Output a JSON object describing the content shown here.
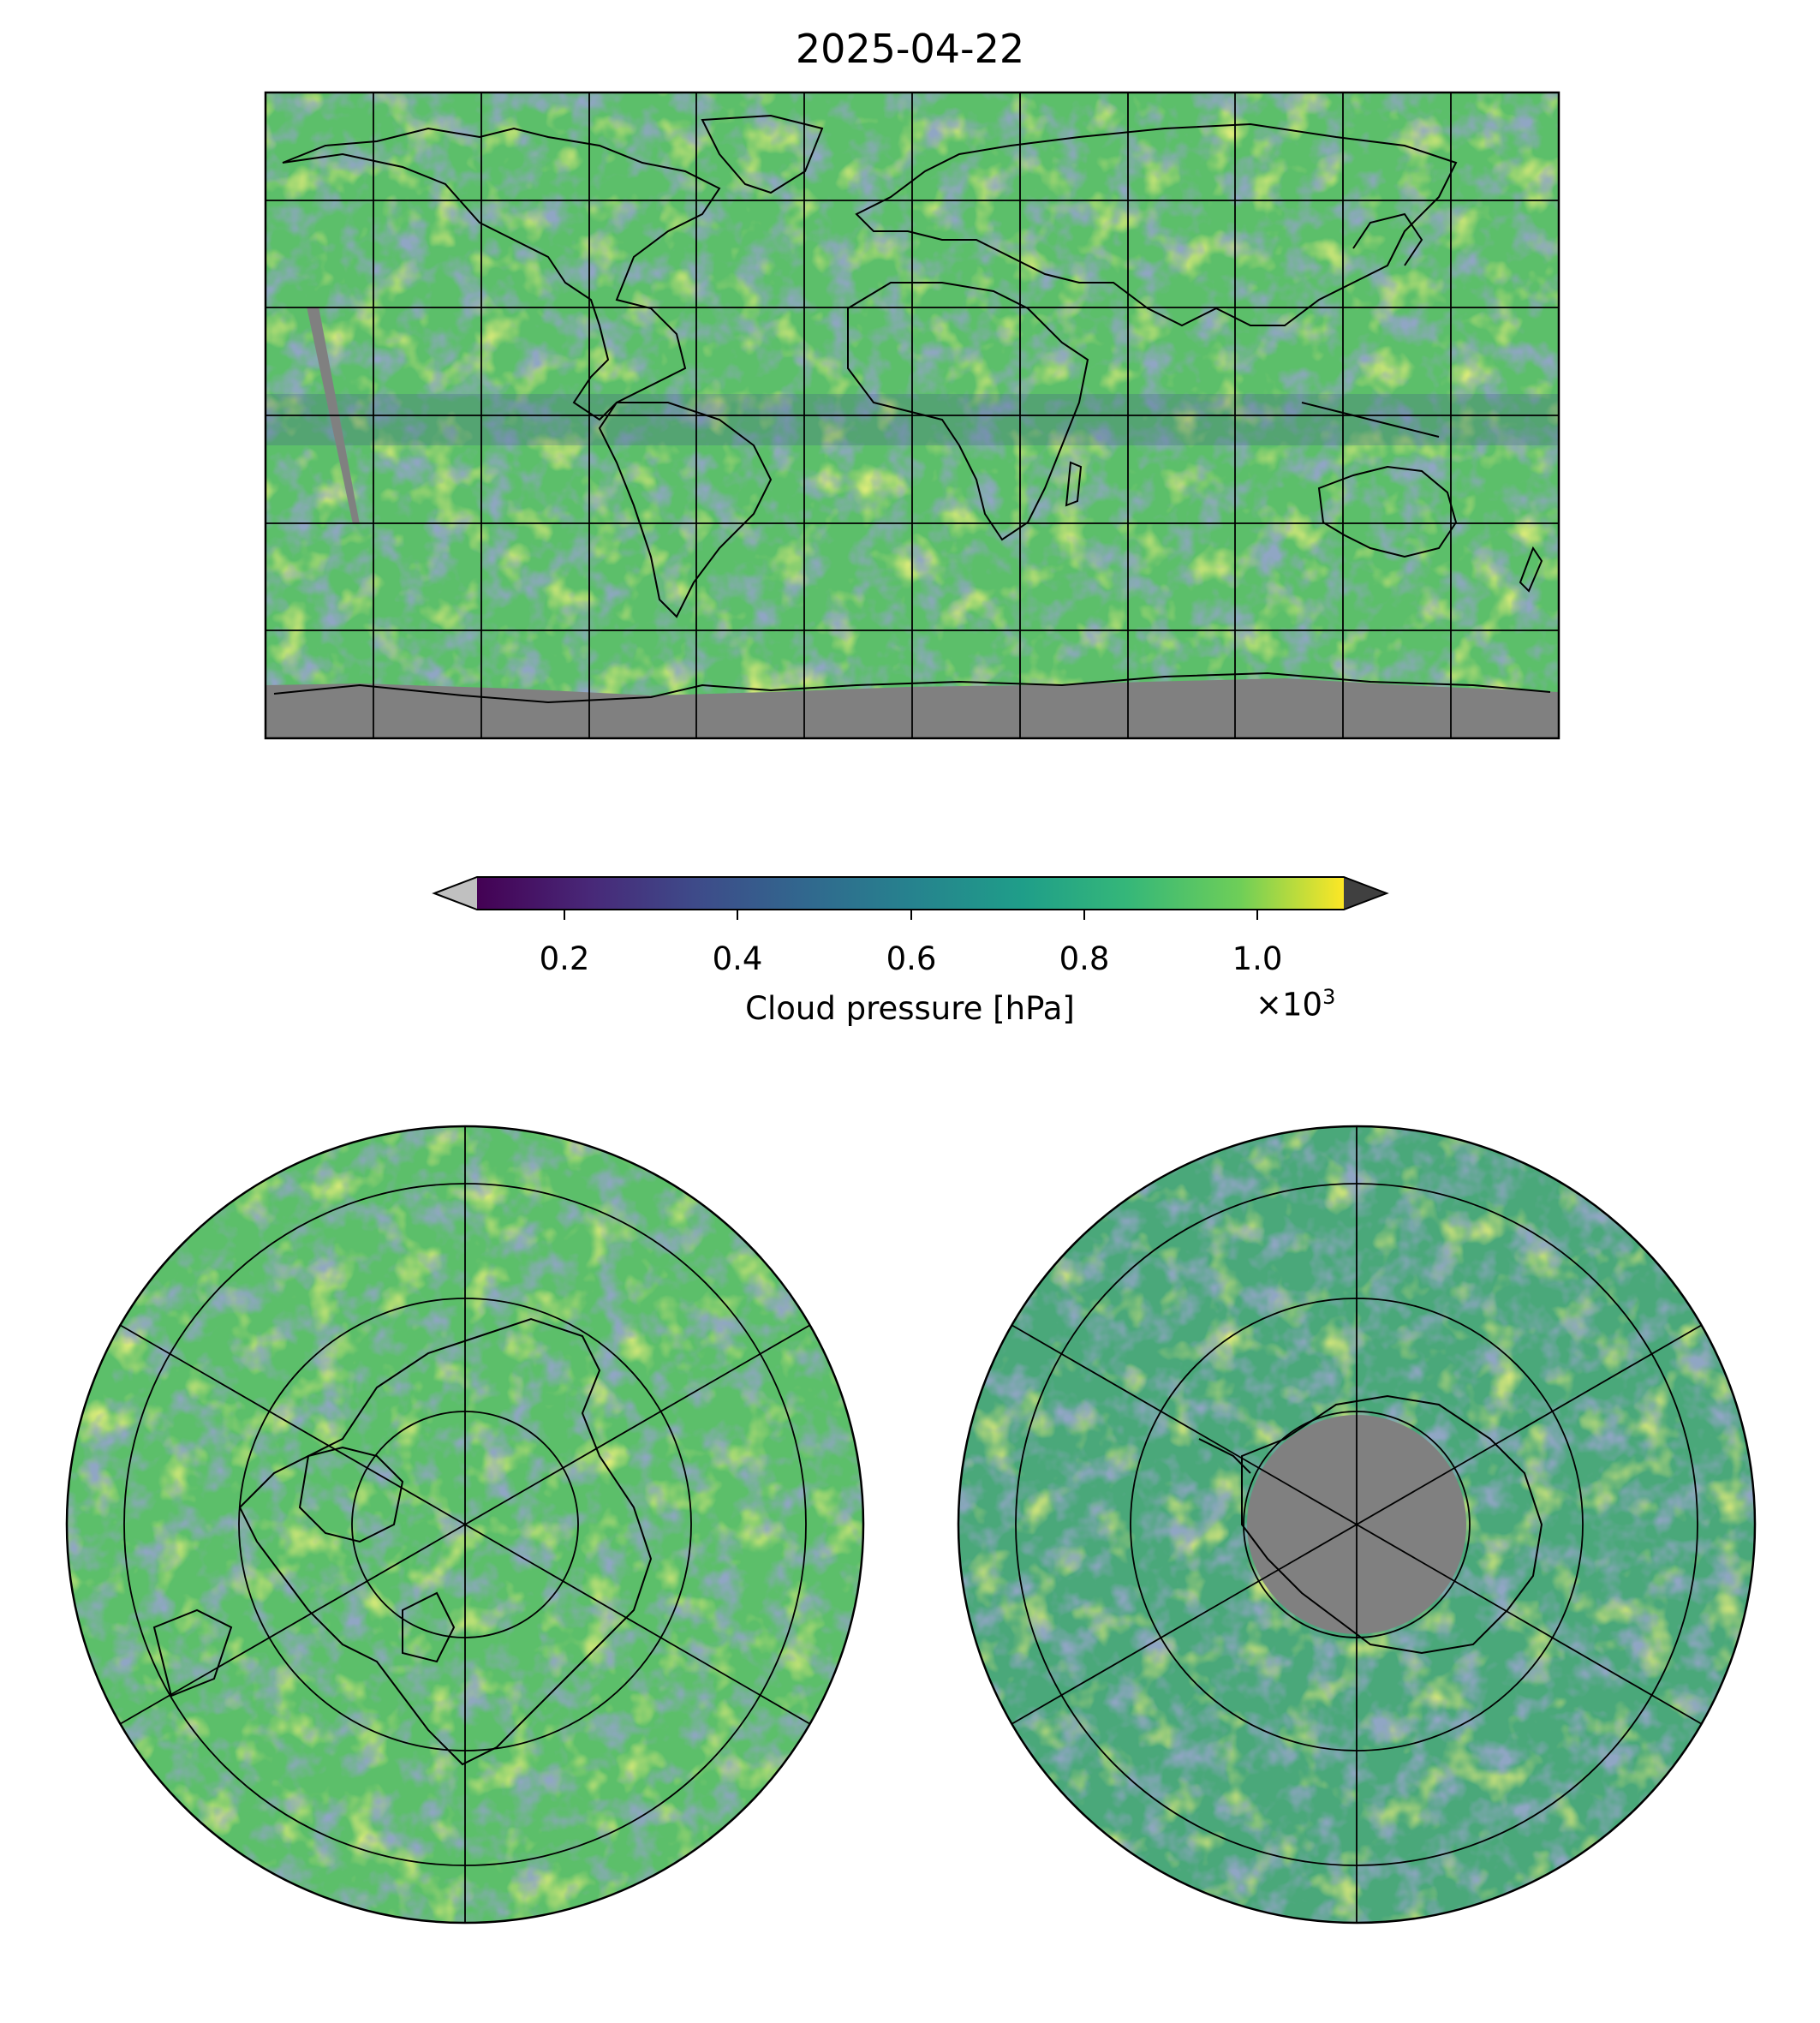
{
  "figure": {
    "title": "2025-04-22"
  },
  "colorbar": {
    "label": "Cloud pressure [hPa]",
    "multiplier_base": "×10",
    "multiplier_exp": "3",
    "ticks": [
      "0.2",
      "0.4",
      "0.6",
      "0.8",
      "1.0"
    ],
    "colormap": "viridis",
    "vmin": 0.1,
    "vmax": 1.1,
    "extend": "both",
    "under_color": "#c0c0c0",
    "over_color": "#404040"
  },
  "colors": {
    "missing": "#808080",
    "frame": "#000000"
  },
  "maps": [
    {
      "projection": "plate-carree",
      "region": "global",
      "gridlines": true
    },
    {
      "projection": "north-polar-stereographic",
      "region": "northern-hemisphere",
      "gridlines": true
    },
    {
      "projection": "south-polar-stereographic",
      "region": "southern-hemisphere",
      "gridlines": true
    }
  ]
}
